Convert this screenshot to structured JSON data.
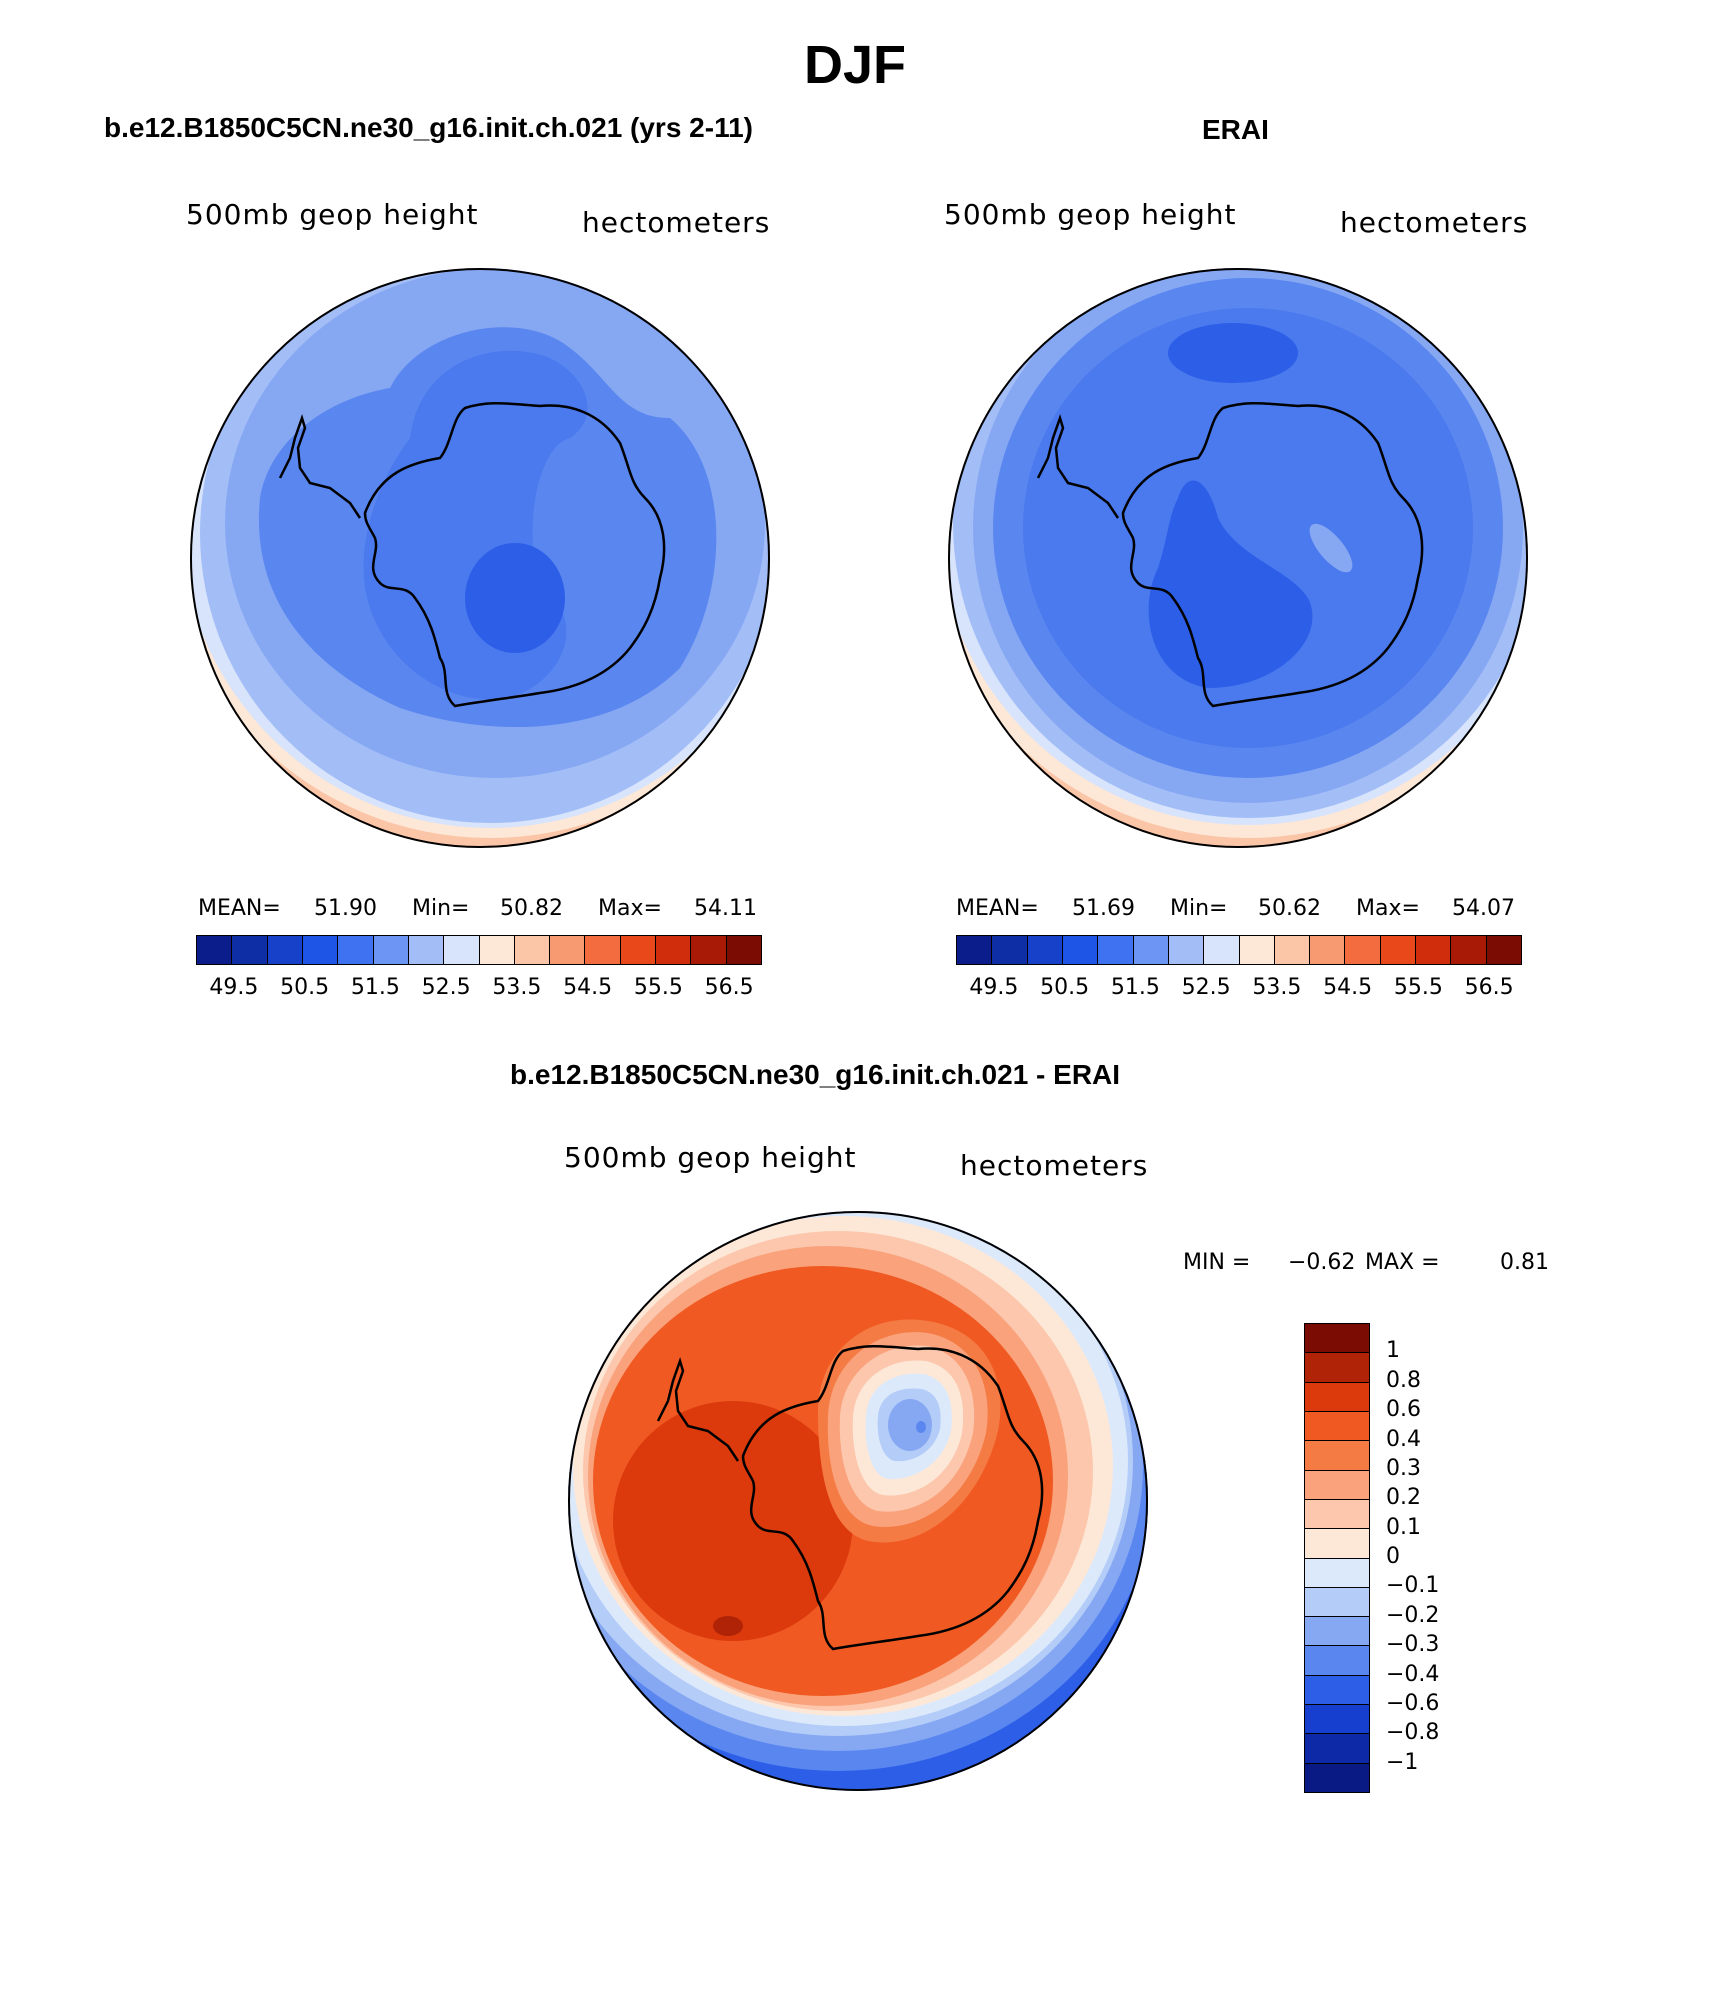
{
  "figure": {
    "title": "DJF",
    "top_left_title": "b.e12.B1850C5CN.ne30_g16.init.ch.021 (yrs 2-11)",
    "top_right_title": "ERAI",
    "bottom_title": "b.e12.B1850C5CN.ne30_g16.init.ch.021 - ERAI"
  },
  "panels": {
    "left": {
      "left_label": "500mb geop height",
      "right_label": "hectometers",
      "mean_label": "MEAN=",
      "mean": "51.90",
      "min_label": "Min=",
      "min": "50.82",
      "max_label": "Max=",
      "max": "54.11"
    },
    "right": {
      "left_label": "500mb geop height",
      "right_label": "hectometers",
      "mean_label": "MEAN=",
      "mean": "51.69",
      "min_label": "Min=",
      "min": "50.62",
      "max_label": "Max=",
      "max": "54.07"
    },
    "diff": {
      "left_label": "500mb geop height",
      "right_label": "hectometers",
      "min_label": "MIN =",
      "min": "−0.62",
      "max_label": "MAX =",
      "max": "0.81"
    }
  },
  "colorbars": {
    "abs": {
      "colors": [
        "#0b1d8a",
        "#0e2ea6",
        "#1641c8",
        "#1f55e6",
        "#3f72f0",
        "#6d95f3",
        "#a3bdf7",
        "#d7e4fb",
        "#fde7d6",
        "#fbc6a8",
        "#f79a72",
        "#f26c40",
        "#e9481a",
        "#cf2d0c",
        "#a81a06",
        "#7a0c04"
      ],
      "labels": [
        "49.5",
        "50.5",
        "51.5",
        "52.5",
        "53.5",
        "54.5",
        "55.5",
        "56.5"
      ]
    },
    "diff": {
      "colors": [
        "#7a0c04",
        "#b02306",
        "#dc3a0c",
        "#f05a22",
        "#f57b45",
        "#f9a27c",
        "#fcc7ac",
        "#fde8d8",
        "#dce9fb",
        "#b4ccf8",
        "#86a8f3",
        "#5a86f0",
        "#2c5ee8",
        "#163fcf",
        "#0d29a8",
        "#0a1a85"
      ],
      "labels": [
        "1",
        "0.8",
        "0.6",
        "0.4",
        "0.3",
        "0.2",
        "0.1",
        "0",
        "−0.1",
        "−0.2",
        "−0.3",
        "−0.4",
        "−0.6",
        "−0.8",
        "−1"
      ]
    }
  }
}
